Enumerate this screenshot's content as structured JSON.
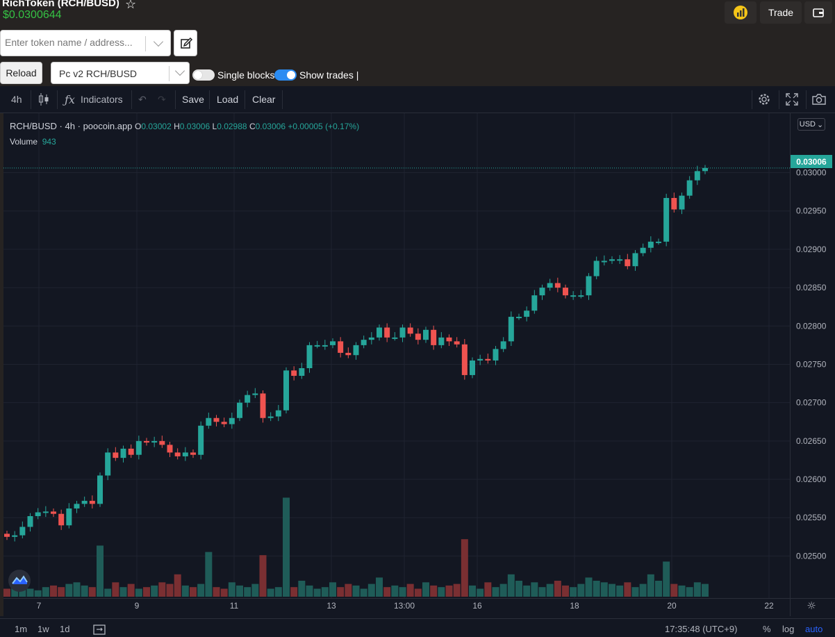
{
  "header": {
    "title": "RichToken (RCH/BUSD)",
    "price": "$0.0300644",
    "search_placeholder": "Enter token name / address...",
    "reload_label": "Reload",
    "pair_selected": "Pc v2 RCH/BUSD",
    "single_blocks_label": "Single blocks",
    "show_trades_label": "Show trades |",
    "trade_label": "Trade"
  },
  "toolbar": {
    "interval": "4h",
    "indicators_label": "Indicators",
    "save_label": "Save",
    "load_label": "Load",
    "clear_label": "Clear"
  },
  "legend": {
    "symbol": "RCH/BUSD",
    "sep1": "·",
    "interval": "4h",
    "sep2": "·",
    "source": "poocoin.app",
    "o_label": "O",
    "o_value": "0.03002",
    "h_label": "H",
    "h_value": "0.03006",
    "l_label": "L",
    "l_value": "0.02988",
    "c_label": "C",
    "c_value": "0.03006",
    "change": "+0.00005 (+0.17%)",
    "volume_label": "Volume",
    "volume_value": "943"
  },
  "currency": "USD",
  "last_price_tag": "0.03006",
  "colors": {
    "up": "#26a69a",
    "down": "#ef5350",
    "up_vol": "#1f5c58",
    "down_vol": "#7a2f32"
  },
  "chart_data": {
    "type": "candlestick",
    "y_ticks": [
      "0.02500",
      "0.02550",
      "0.02600",
      "0.02650",
      "0.02700",
      "0.02750",
      "0.02800",
      "0.02850",
      "0.02900",
      "0.02950",
      "0.03000"
    ],
    "x_ticks": [
      "7",
      "9",
      "11",
      "13",
      "13:00",
      "16",
      "18",
      "20",
      "22"
    ],
    "ylim": [
      0.02475,
      0.03015
    ],
    "closes": [
      0.02525,
      0.02527,
      0.02538,
      0.02552,
      0.02557,
      0.02558,
      0.02555,
      0.0254,
      0.02562,
      0.02568,
      0.02572,
      0.02568,
      0.02605,
      0.02635,
      0.02628,
      0.0264,
      0.02632,
      0.0265,
      0.02648,
      0.0265,
      0.02645,
      0.02635,
      0.0263,
      0.02635,
      0.02632,
      0.0267,
      0.0268,
      0.02675,
      0.02672,
      0.0268,
      0.027,
      0.0271,
      0.02712,
      0.0268,
      0.02682,
      0.0269,
      0.02742,
      0.02735,
      0.02745,
      0.02775,
      0.02775,
      0.02775,
      0.0278,
      0.02765,
      0.02762,
      0.02775,
      0.02782,
      0.02785,
      0.02798,
      0.02785,
      0.02785,
      0.02798,
      0.0279,
      0.02782,
      0.02795,
      0.02775,
      0.02785,
      0.0278,
      0.02776,
      0.02736,
      0.02755,
      0.02757,
      0.02755,
      0.0277,
      0.0278,
      0.02812,
      0.02812,
      0.0282,
      0.0284,
      0.0285,
      0.02856,
      0.0285,
      0.0284,
      0.0284,
      0.0284,
      0.02865,
      0.02885,
      0.02885,
      0.02887,
      0.02887,
      0.02878,
      0.02895,
      0.02902,
      0.0291,
      0.0291,
      0.02967,
      0.02952,
      0.0297,
      0.0299,
      0.03002,
      0.03006
    ]
  }
}
